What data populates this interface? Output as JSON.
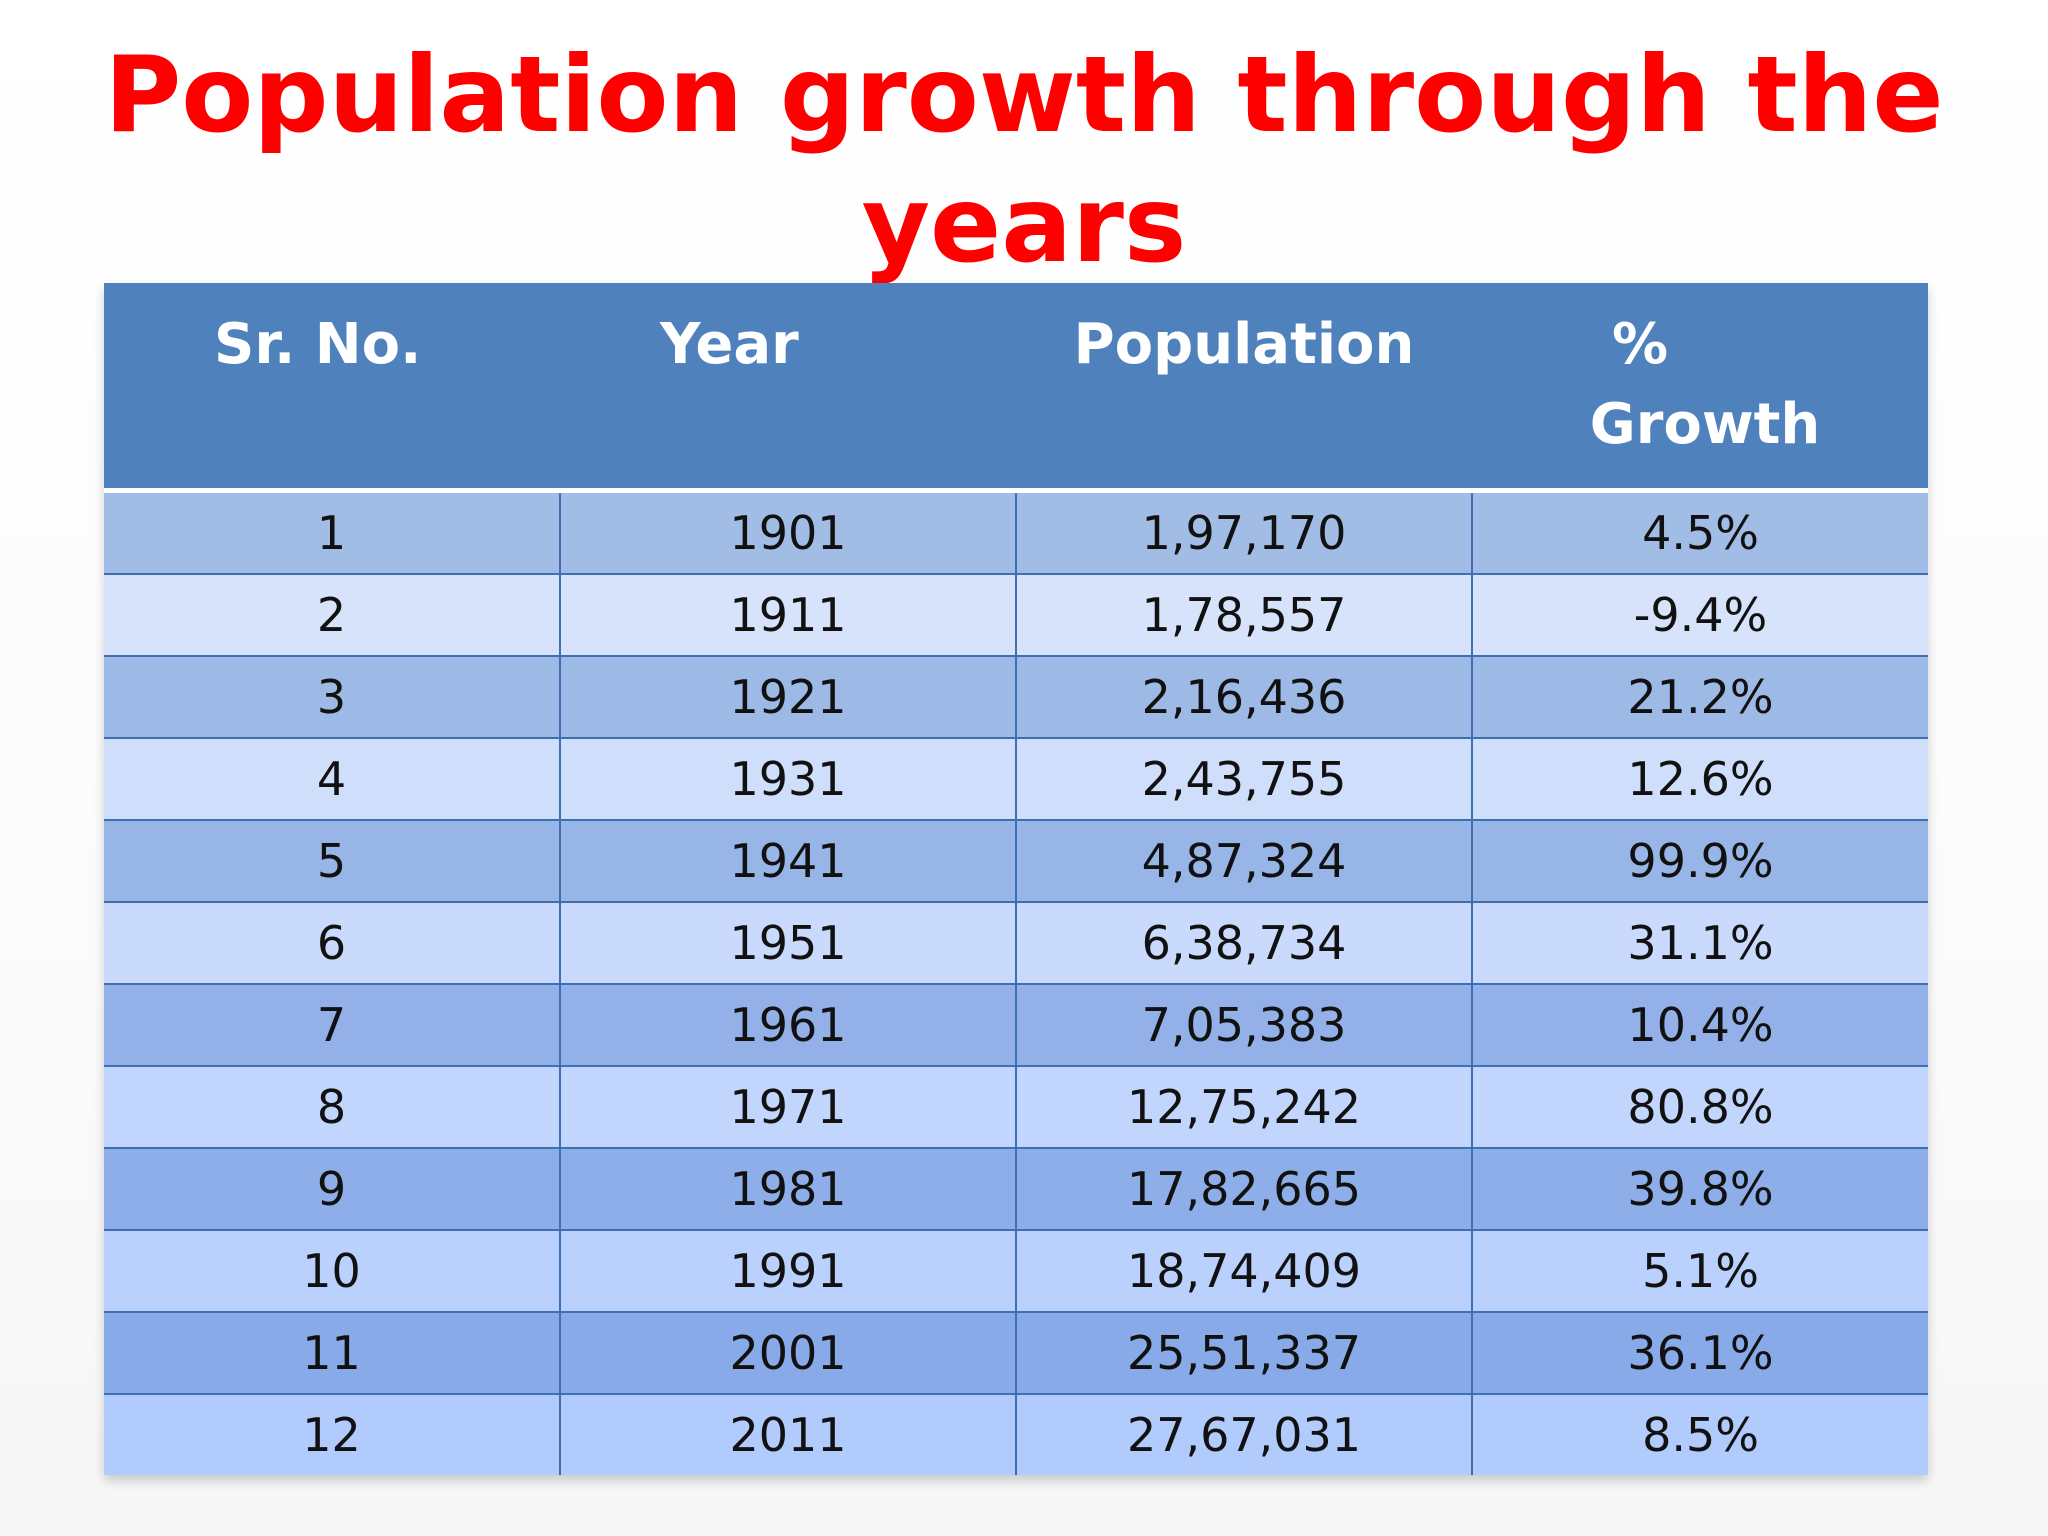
{
  "title": "Population growth through the years",
  "table": {
    "headers": [
      "Sr. No.",
      "Year",
      "Population",
      "%",
      "Growth"
    ],
    "rows": [
      {
        "sr": "1",
        "year": "1901",
        "population": "1,97,170",
        "growth": "4.5%"
      },
      {
        "sr": "2",
        "year": "1911",
        "population": "1,78,557",
        "growth": "-9.4%"
      },
      {
        "sr": "3",
        "year": "1921",
        "population": "2,16,436",
        "growth": "21.2%"
      },
      {
        "sr": "4",
        "year": "1931",
        "population": "2,43,755",
        "growth": "12.6%"
      },
      {
        "sr": "5",
        "year": "1941",
        "population": "4,87,324",
        "growth": "99.9%"
      },
      {
        "sr": "6",
        "year": "1951",
        "population": "6,38,734",
        "growth": "31.1%"
      },
      {
        "sr": "7",
        "year": "1961",
        "population": "7,05,383",
        "growth": "10.4%"
      },
      {
        "sr": "8",
        "year": "1971",
        "population": "12,75,242",
        "growth": "80.8%"
      },
      {
        "sr": "9",
        "year": "1981",
        "population": "17,82,665",
        "growth": "39.8%"
      },
      {
        "sr": "10",
        "year": "1991",
        "population": "18,74,409",
        "growth": "5.1%"
      },
      {
        "sr": "11",
        "year": "2001",
        "population": "25,51,337",
        "growth": "36.1%"
      },
      {
        "sr": "12",
        "year": "2011",
        "population": "27,67,031",
        "growth": "8.5%"
      }
    ]
  },
  "colors": {
    "title": "#ff0000",
    "header_bg": "#4f81bd",
    "header_text": "#ffffff"
  }
}
